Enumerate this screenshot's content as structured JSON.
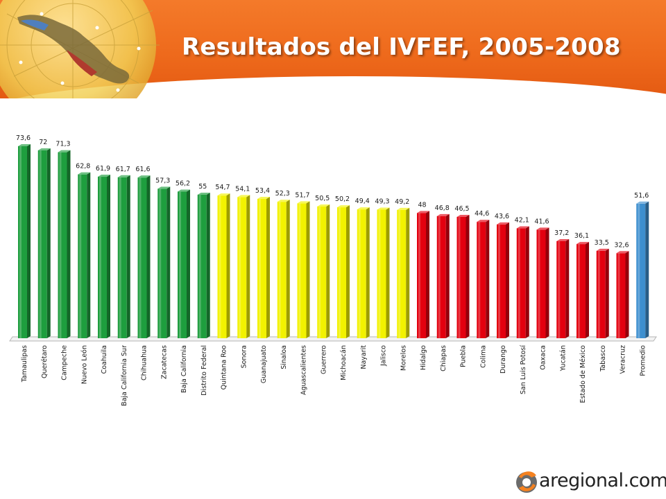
{
  "header": {
    "title": "Resultados del IVFEF, 2005-2008"
  },
  "logo": {
    "text": "aregional.com"
  },
  "colors": {
    "green": "#1e9e3e",
    "yellow": "#f2f200",
    "red": "#e3000f",
    "blue": "#3d8fcf",
    "header_orange": "#ee6a1c"
  },
  "chart_data": {
    "type": "bar",
    "title": "",
    "xlabel": "",
    "ylabel": "",
    "ylim": [
      0,
      80
    ],
    "grid": false,
    "categories": [
      "Tamaulipas",
      "Querétaro",
      "Campeche",
      "Nuevo León",
      "Coahuila",
      "Baja California Sur",
      "Chihuahua",
      "Zacatecas",
      "Baja California",
      "Distrito Federal",
      "Quintana Roo",
      "Sonora",
      "Guanajuato",
      "Sinaloa",
      "Aguascalientes",
      "Guerrero",
      "Michoacán",
      "Nayarit",
      "Jalisco",
      "Morelos",
      "Hidalgo",
      "Chiapas",
      "Puebla",
      "Colima",
      "Durango",
      "San Luis Potosí",
      "Oaxaca",
      "Yucatán",
      "Estado de México",
      "Tabasco",
      "Veracruz",
      "Promedio"
    ],
    "values": [
      73.6,
      72,
      71.3,
      62.8,
      61.9,
      61.7,
      61.6,
      57.3,
      56.2,
      55,
      54.7,
      54.1,
      53.4,
      52.3,
      51.7,
      50.5,
      50.2,
      49.4,
      49.3,
      49.2,
      48,
      46.8,
      46.5,
      44.6,
      43.6,
      42.1,
      41.6,
      37.2,
      36.1,
      33.5,
      32.6,
      51.6
    ],
    "value_labels": [
      "73,6",
      "72",
      "71,3",
      "62,8",
      "61,9",
      "61,7",
      "61,6",
      "57,3",
      "56,2",
      "55",
      "54,7",
      "54,1",
      "53,4",
      "52,3",
      "51,7",
      "50,5",
      "50,2",
      "49,4",
      "49,3",
      "49,2",
      "48",
      "46,8",
      "46,5",
      "44,6",
      "43,6",
      "42,1",
      "41,6",
      "37,2",
      "36,1",
      "33,5",
      "32,6",
      "51,6"
    ],
    "bar_colors": [
      "green",
      "green",
      "green",
      "green",
      "green",
      "green",
      "green",
      "green",
      "green",
      "green",
      "yellow",
      "yellow",
      "yellow",
      "yellow",
      "yellow",
      "yellow",
      "yellow",
      "yellow",
      "yellow",
      "yellow",
      "red",
      "red",
      "red",
      "red",
      "red",
      "red",
      "red",
      "red",
      "red",
      "red",
      "red",
      "blue"
    ]
  }
}
